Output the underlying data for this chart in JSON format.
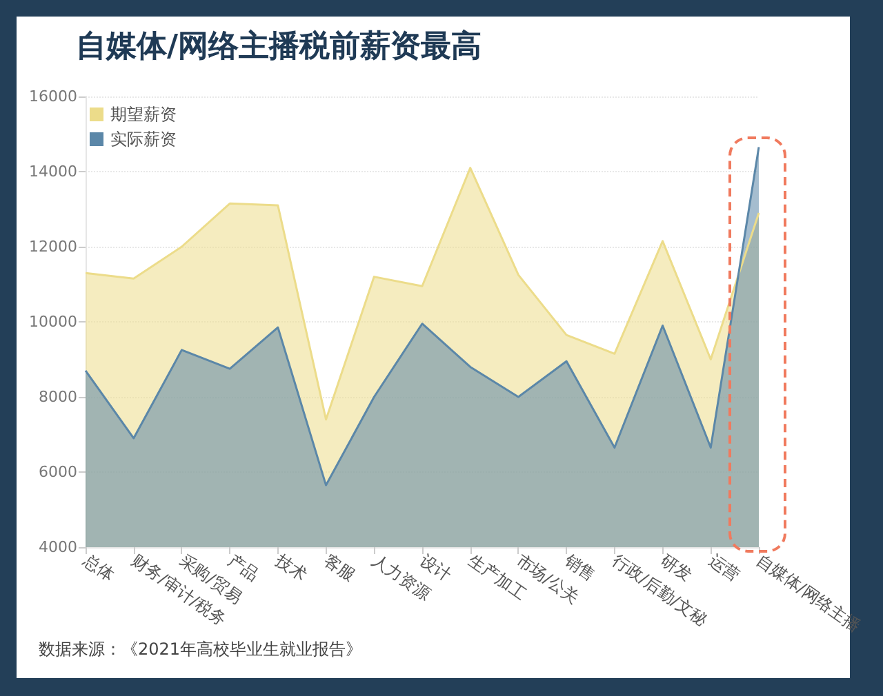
{
  "chart_data": {
    "type": "area",
    "title": "自媒体/网络主播税前薪资最高",
    "categories": [
      "总体",
      "财务/审计/税务",
      "采购/贸易",
      "产品",
      "技术",
      "客服",
      "人力资源",
      "设计",
      "生产加工",
      "市场/公关",
      "销售",
      "行政/后勤/文秘",
      "研发",
      "运营",
      "自媒体/网络主播"
    ],
    "series": [
      {
        "name": "期望薪资",
        "color": "#ecdc8a",
        "values": [
          11300,
          11150,
          12000,
          13150,
          13100,
          7400,
          11200,
          10950,
          14100,
          11250,
          9650,
          9150,
          12150,
          9000,
          12900
        ]
      },
      {
        "name": "实际薪资",
        "color": "#5b87a8",
        "values": [
          8700,
          6900,
          9250,
          8750,
          9850,
          5650,
          8000,
          9950,
          8800,
          8000,
          8950,
          6650,
          9900,
          6650,
          14650
        ]
      }
    ],
    "ylim": [
      4000,
      16000
    ],
    "yticks": [
      4000,
      6000,
      8000,
      10000,
      12000,
      14000,
      16000
    ],
    "grid": "y",
    "legend": "top left",
    "annotations": [
      "数据来源：《2021年高校毕业生就业报告》"
    ]
  }
}
